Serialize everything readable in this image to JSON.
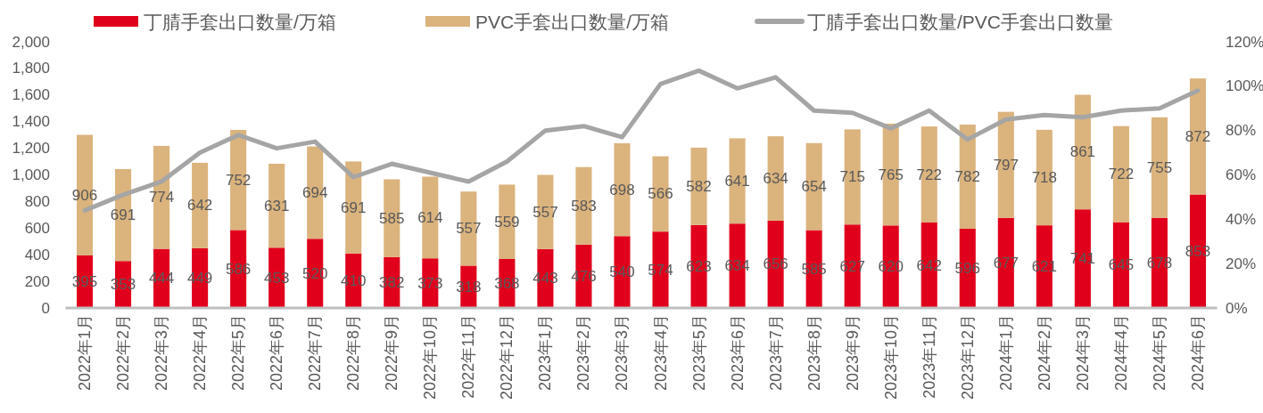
{
  "chart_data": {
    "type": "bar",
    "stacked": true,
    "legend": "top",
    "categories": [
      "2022年1月",
      "2022年2月",
      "2022年3月",
      "2022年4月",
      "2022年5月",
      "2022年6月",
      "2022年7月",
      "2022年8月",
      "2022年9月",
      "2022年10月",
      "2022年11月",
      "2022年12月",
      "2023年1月",
      "2023年2月",
      "2023年3月",
      "2023年4月",
      "2023年5月",
      "2023年6月",
      "2023年7月",
      "2023年8月",
      "2023年9月",
      "2023年10月",
      "2023年11月",
      "2023年12月",
      "2024年1月",
      "2024年2月",
      "2024年3月",
      "2024年4月",
      "2024年5月",
      "2024年6月"
    ],
    "series": [
      {
        "name": "丁腈手套出口数量/万箱",
        "color": "#e1001b",
        "values": [
          395,
          353,
          444,
          449,
          586,
          453,
          520,
          410,
          382,
          373,
          318,
          368,
          443,
          476,
          540,
          574,
          623,
          634,
          656,
          585,
          627,
          620,
          642,
          596,
          677,
          621,
          741,
          645,
          678,
          853
        ],
        "value_labels": [
          "395",
          "353",
          "444",
          "449",
          "586",
          "453",
          "520",
          "410",
          "382",
          "373",
          "318",
          "368",
          "443",
          "476",
          "540",
          "574",
          "623",
          "634",
          "656",
          "585",
          "627",
          "620",
          "642",
          "596",
          "677",
          "621",
          "741",
          "645",
          "678",
          "853"
        ]
      },
      {
        "name": "PVC手套出口数量/万箱",
        "color": "#dbb37d",
        "values": [
          906,
          691,
          774,
          642,
          752,
          631,
          694,
          691,
          585,
          614,
          557,
          559,
          557,
          583,
          698,
          566,
          582,
          641,
          634,
          654,
          715,
          765,
          722,
          782,
          797,
          718,
          861,
          722,
          755,
          872
        ],
        "value_labels": [
          "906",
          "691",
          "774",
          "642",
          "752",
          "631",
          "694",
          "691",
          "585",
          "614",
          "557",
          "559",
          "557",
          "583",
          "698",
          "566",
          "582",
          "641",
          "634",
          "654",
          "715",
          "765",
          "722",
          "782",
          "797",
          "718",
          "861",
          "722",
          "755",
          "872"
        ]
      },
      {
        "name": "丁腈手套出口数量/PVC手套出口数量",
        "type": "line",
        "axis": "y2",
        "color": "#a5a5a5",
        "values": [
          44,
          51,
          57,
          70,
          78,
          72,
          75,
          59,
          65,
          61,
          57,
          66,
          80,
          82,
          77,
          101,
          107,
          99,
          104,
          89,
          88,
          81,
          89,
          76,
          85,
          87,
          86,
          89,
          90,
          98
        ]
      }
    ],
    "ylim": [
      0,
      2000
    ],
    "yticks": [
      0,
      200,
      400,
      600,
      800,
      {
        "value": 1000,
        "label": "1,000"
      },
      {
        "value": 1200,
        "label": "1,200"
      },
      {
        "value": 1400,
        "label": "1,400"
      },
      {
        "value": 1600,
        "label": "1,600"
      },
      {
        "value": 1800,
        "label": "1,800"
      },
      {
        "value": 2000,
        "label": "2,000"
      }
    ],
    "y2lim": [
      0,
      120
    ],
    "y2ticks": [
      {
        "value": 0,
        "label": "0%"
      },
      {
        "value": 20,
        "label": "20%"
      },
      {
        "value": 40,
        "label": "40%"
      },
      {
        "value": 60,
        "label": "60%"
      },
      {
        "value": 80,
        "label": "80%"
      },
      {
        "value": 100,
        "label": "100%"
      },
      {
        "value": 120,
        "label": "120%"
      }
    ]
  }
}
